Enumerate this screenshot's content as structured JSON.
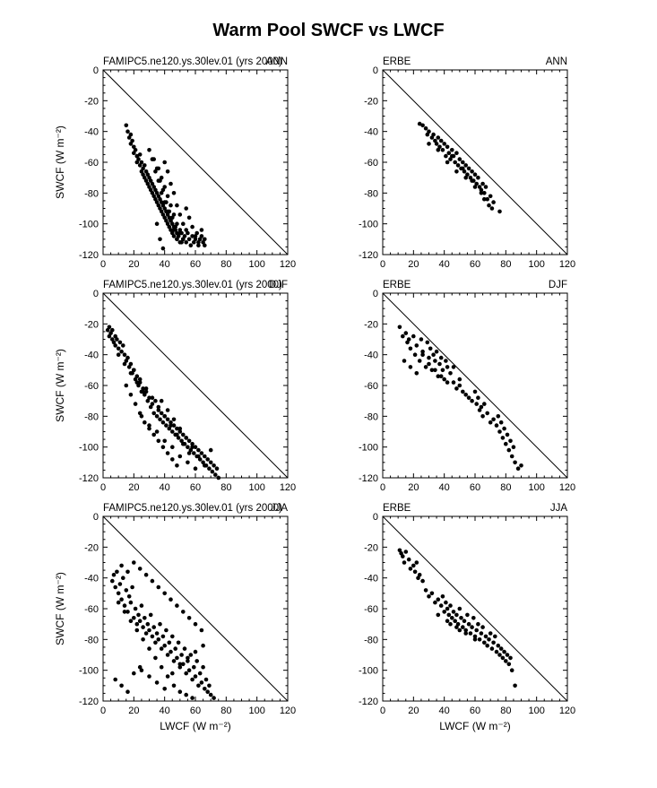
{
  "page": {
    "title": "Warm Pool SWCF vs LWCF"
  },
  "chart_data": [
    {
      "type": "scatter",
      "left_label": "FAMIPC5.ne120.ys.30lev.01  (yrs 2000)",
      "right_label": "ANN",
      "ylabel": "SWCF  (W m⁻²)",
      "xlabel": "",
      "xlim": [
        0,
        120
      ],
      "ylim": [
        -120,
        0
      ],
      "xticks": [
        "0",
        "20",
        "40",
        "60",
        "80",
        "100",
        "120"
      ],
      "yticks": [
        "0",
        "-20",
        "-40",
        "-60",
        "-80",
        "-100",
        "-120"
      ],
      "reference_line": "y = -x",
      "x": [
        15,
        16,
        17,
        18,
        18,
        19,
        20,
        20,
        21,
        22,
        22,
        23,
        24,
        24,
        25,
        25,
        26,
        26,
        27,
        27,
        28,
        28,
        29,
        29,
        30,
        30,
        31,
        31,
        32,
        32,
        33,
        33,
        34,
        34,
        35,
        35,
        36,
        36,
        37,
        37,
        38,
        38,
        39,
        39,
        40,
        40,
        41,
        41,
        42,
        42,
        43,
        43,
        44,
        44,
        45,
        45,
        46,
        46,
        47,
        48,
        48,
        49,
        50,
        50,
        51,
        52,
        53,
        54,
        55,
        56,
        57,
        58,
        59,
        60,
        61,
        62,
        63,
        64,
        65,
        66,
        36,
        38,
        40,
        42,
        44,
        46,
        48,
        50,
        52,
        54,
        33,
        35,
        37,
        39,
        41,
        43,
        45,
        47,
        49,
        51,
        30,
        32,
        34,
        36,
        38,
        40,
        42,
        44,
        46,
        48,
        40,
        42,
        44,
        46,
        48,
        50,
        52,
        54,
        56,
        58,
        60,
        62,
        64,
        66,
        35,
        37,
        39
      ],
      "y": [
        -36,
        -40,
        -44,
        -42,
        -48,
        -46,
        -50,
        -54,
        -52,
        -56,
        -60,
        -58,
        -62,
        -55,
        -66,
        -60,
        -64,
        -68,
        -62,
        -70,
        -66,
        -72,
        -68,
        -74,
        -70,
        -76,
        -72,
        -78,
        -74,
        -80,
        -76,
        -82,
        -78,
        -84,
        -80,
        -86,
        -82,
        -88,
        -84,
        -90,
        -86,
        -92,
        -88,
        -94,
        -90,
        -96,
        -92,
        -98,
        -94,
        -100,
        -96,
        -102,
        -98,
        -104,
        -100,
        -106,
        -102,
        -108,
        -104,
        -106,
        -110,
        -108,
        -104,
        -112,
        -106,
        -110,
        -108,
        -112,
        -106,
        -110,
        -114,
        -108,
        -112,
        -110,
        -106,
        -114,
        -110,
        -108,
        -112,
        -110,
        -64,
        -70,
        -76,
        -82,
        -88,
        -94,
        -100,
        -106,
        -110,
        -104,
        -58,
        -64,
        -72,
        -78,
        -86,
        -92,
        -96,
        -102,
        -108,
        -112,
        -52,
        -58,
        -66,
        -72,
        -80,
        -86,
        -92,
        -98,
        -104,
        -110,
        -60,
        -66,
        -74,
        -80,
        -88,
        -94,
        -100,
        -90,
        -96,
        -102,
        -108,
        -112,
        -104,
        -114,
        -100,
        -110,
        -116
      ]
    },
    {
      "type": "scatter",
      "left_label": "ERBE",
      "right_label": "ANN",
      "ylabel": "",
      "xlabel": "",
      "xlim": [
        0,
        120
      ],
      "ylim": [
        -120,
        0
      ],
      "xticks": [
        "0",
        "20",
        "40",
        "60",
        "80",
        "100",
        "120"
      ],
      "yticks": [
        "0",
        "-20",
        "-40",
        "-60",
        "-80",
        "-100",
        "-120"
      ],
      "reference_line": "y = -x",
      "x": [
        24,
        26,
        28,
        29,
        30,
        32,
        33,
        34,
        35,
        36,
        37,
        38,
        39,
        40,
        41,
        42,
        43,
        44,
        45,
        46,
        47,
        48,
        49,
        50,
        51,
        52,
        53,
        54,
        55,
        56,
        57,
        58,
        59,
        60,
        61,
        62,
        63,
        64,
        65,
        66,
        67,
        68,
        69,
        70,
        71,
        72,
        76,
        30,
        36,
        42,
        48,
        54,
        60,
        66,
        45,
        52,
        58,
        64
      ],
      "y": [
        -35,
        -36,
        -38,
        -42,
        -40,
        -44,
        -42,
        -46,
        -48,
        -44,
        -50,
        -46,
        -52,
        -48,
        -56,
        -50,
        -54,
        -58,
        -52,
        -56,
        -60,
        -54,
        -62,
        -58,
        -64,
        -60,
        -66,
        -62,
        -68,
        -64,
        -70,
        -66,
        -72,
        -68,
        -74,
        -70,
        -76,
        -78,
        -74,
        -80,
        -76,
        -84,
        -88,
        -82,
        -90,
        -86,
        -92,
        -48,
        -52,
        -60,
        -66,
        -70,
        -76,
        -84,
        -56,
        -64,
        -72,
        -80
      ]
    },
    {
      "type": "scatter",
      "left_label": "FAMIPC5.ne120.ys.30lev.01  (yrs 2000)",
      "right_label": "DJF",
      "ylabel": "SWCF  (W m⁻²)",
      "xlabel": "",
      "xlim": [
        0,
        120
      ],
      "ylim": [
        -120,
        0
      ],
      "xticks": [
        "0",
        "20",
        "40",
        "60",
        "80",
        "100",
        "120"
      ],
      "yticks": [
        "0",
        "-20",
        "-40",
        "-60",
        "-80",
        "-100",
        "-120"
      ],
      "reference_line": "y = -x",
      "x": [
        3,
        4,
        4,
        5,
        6,
        6,
        7,
        8,
        8,
        9,
        10,
        11,
        12,
        13,
        14,
        15,
        16,
        17,
        18,
        19,
        20,
        21,
        22,
        23,
        24,
        25,
        26,
        27,
        28,
        29,
        30,
        31,
        32,
        33,
        34,
        35,
        36,
        37,
        38,
        39,
        40,
        41,
        42,
        43,
        44,
        45,
        46,
        47,
        48,
        49,
        50,
        51,
        52,
        53,
        54,
        55,
        56,
        57,
        58,
        59,
        60,
        61,
        62,
        63,
        64,
        65,
        66,
        67,
        68,
        69,
        70,
        71,
        72,
        73,
        74,
        75,
        15,
        18,
        21,
        24,
        27,
        30,
        33,
        36,
        39,
        42,
        45,
        48,
        20,
        24,
        28,
        32,
        36,
        40,
        44,
        48,
        52,
        56,
        25,
        30,
        35,
        40,
        45,
        50,
        55,
        60,
        38,
        42,
        46,
        50,
        54,
        58,
        62,
        66,
        70,
        10,
        14,
        18,
        22,
        26
      ],
      "y": [
        -24,
        -22,
        -28,
        -26,
        -30,
        -24,
        -32,
        -28,
        -34,
        -30,
        -36,
        -32,
        -38,
        -34,
        -40,
        -44,
        -42,
        -48,
        -46,
        -52,
        -50,
        -56,
        -54,
        -60,
        -58,
        -64,
        -62,
        -66,
        -64,
        -70,
        -68,
        -74,
        -72,
        -78,
        -70,
        -80,
        -76,
        -82,
        -78,
        -84,
        -80,
        -86,
        -82,
        -88,
        -84,
        -90,
        -86,
        -92,
        -88,
        -94,
        -90,
        -96,
        -92,
        -98,
        -94,
        -100,
        -96,
        -102,
        -98,
        -104,
        -100,
        -106,
        -102,
        -108,
        -104,
        -110,
        -106,
        -112,
        -108,
        -114,
        -110,
        -116,
        -112,
        -118,
        -114,
        -120,
        -60,
        -66,
        -72,
        -78,
        -84,
        -88,
        -92,
        -96,
        -100,
        -104,
        -108,
        -112,
        -50,
        -56,
        -62,
        -68,
        -74,
        -80,
        -86,
        -92,
        -98,
        -104,
        -80,
        -86,
        -90,
        -96,
        -100,
        -106,
        -110,
        -114,
        -70,
        -76,
        -82,
        -88,
        -94,
        -100,
        -106,
        -112,
        -102,
        -40,
        -46,
        -52,
        -58,
        -64
      ]
    },
    {
      "type": "scatter",
      "left_label": "ERBE",
      "right_label": "DJF",
      "ylabel": "",
      "xlabel": "",
      "xlim": [
        0,
        120
      ],
      "ylim": [
        -120,
        0
      ],
      "xticks": [
        "0",
        "20",
        "40",
        "60",
        "80",
        "100",
        "120"
      ],
      "yticks": [
        "0",
        "-20",
        "-40",
        "-60",
        "-80",
        "-100",
        "-120"
      ],
      "reference_line": "y = -x",
      "x": [
        11,
        13,
        15,
        16,
        17,
        18,
        20,
        21,
        22,
        24,
        25,
        26,
        28,
        29,
        30,
        31,
        32,
        33,
        34,
        35,
        36,
        37,
        38,
        39,
        40,
        41,
        42,
        44,
        46,
        48,
        50,
        52,
        54,
        56,
        58,
        60,
        61,
        62,
        63,
        64,
        65,
        66,
        68,
        70,
        72,
        74,
        75,
        76,
        77,
        78,
        79,
        80,
        81,
        82,
        83,
        84,
        85,
        86,
        88,
        90,
        14,
        18,
        22,
        26,
        30,
        34,
        38,
        42,
        46,
        50
      ],
      "y": [
        -22,
        -28,
        -26,
        -32,
        -30,
        -36,
        -28,
        -40,
        -34,
        -44,
        -30,
        -38,
        -48,
        -32,
        -42,
        -36,
        -50,
        -40,
        -44,
        -38,
        -54,
        -46,
        -42,
        -50,
        -56,
        -44,
        -48,
        -52,
        -58,
        -62,
        -60,
        -64,
        -66,
        -68,
        -70,
        -64,
        -72,
        -68,
        -76,
        -74,
        -80,
        -72,
        -78,
        -84,
        -82,
        -86,
        -80,
        -90,
        -84,
        -94,
        -88,
        -98,
        -92,
        -102,
        -96,
        -106,
        -100,
        -110,
        -114,
        -112,
        -44,
        -48,
        -52,
        -40,
        -46,
        -50,
        -54,
        -58,
        -48,
        -56
      ]
    },
    {
      "type": "scatter",
      "left_label": "FAMIPC5.ne120.ys.30lev.01  (yrs 2000)",
      "right_label": "JJA",
      "ylabel": "SWCF  (W m⁻²)",
      "xlabel": "LWCF  (W m⁻²)",
      "xlim": [
        0,
        120
      ],
      "ylim": [
        -120,
        0
      ],
      "xticks": [
        "0",
        "20",
        "40",
        "60",
        "80",
        "100",
        "120"
      ],
      "yticks": [
        "0",
        "-20",
        "-40",
        "-60",
        "-80",
        "-100",
        "-120"
      ],
      "reference_line": "y = -x",
      "x": [
        6,
        7,
        8,
        9,
        10,
        11,
        12,
        13,
        14,
        15,
        16,
        17,
        18,
        19,
        20,
        21,
        22,
        23,
        24,
        25,
        26,
        27,
        28,
        29,
        30,
        31,
        32,
        33,
        34,
        35,
        36,
        37,
        38,
        39,
        40,
        41,
        42,
        43,
        44,
        45,
        46,
        47,
        48,
        49,
        50,
        51,
        52,
        53,
        54,
        55,
        56,
        57,
        58,
        59,
        60,
        61,
        62,
        63,
        64,
        65,
        66,
        67,
        68,
        69,
        70,
        72,
        10,
        14,
        18,
        22,
        26,
        30,
        34,
        38,
        42,
        46,
        50,
        54,
        58,
        12,
        16,
        20,
        24,
        28,
        32,
        36,
        40,
        44,
        48,
        52,
        56,
        60,
        64,
        25,
        30,
        35,
        40,
        45,
        50,
        55,
        60,
        65,
        8,
        12,
        16,
        20,
        24
      ],
      "y": [
        -42,
        -38,
        -46,
        -36,
        -50,
        -44,
        -54,
        -40,
        -58,
        -48,
        -62,
        -52,
        -56,
        -46,
        -66,
        -60,
        -70,
        -64,
        -68,
        -58,
        -72,
        -66,
        -76,
        -70,
        -74,
        -64,
        -78,
        -72,
        -82,
        -76,
        -80,
        -70,
        -86,
        -78,
        -84,
        -74,
        -90,
        -82,
        -88,
        -78,
        -94,
        -86,
        -92,
        -82,
        -98,
        -90,
        -96,
        -86,
        -102,
        -94,
        -100,
        -90,
        -106,
        -98,
        -104,
        -94,
        -110,
        -102,
        -108,
        -98,
        -112,
        -106,
        -114,
        -110,
        -116,
        -118,
        -56,
        -62,
        -68,
        -74,
        -80,
        -86,
        -92,
        -98,
        -104,
        -110,
        -114,
        -116,
        -118,
        -32,
        -36,
        -30,
        -34,
        -38,
        -42,
        -46,
        -50,
        -54,
        -58,
        -62,
        -66,
        -70,
        -74,
        -100,
        -104,
        -108,
        -112,
        -102,
        -96,
        -92,
        -88,
        -84,
        -106,
        -110,
        -114,
        -102,
        -98
      ]
    },
    {
      "type": "scatter",
      "left_label": "ERBE",
      "right_label": "JJA",
      "ylabel": "",
      "xlabel": "LWCF  (W m⁻²)",
      "xlim": [
        0,
        120
      ],
      "ylim": [
        -120,
        0
      ],
      "xticks": [
        "0",
        "20",
        "40",
        "60",
        "80",
        "100",
        "120"
      ],
      "yticks": [
        "0",
        "-20",
        "-40",
        "-60",
        "-80",
        "-100",
        "-120"
      ],
      "reference_line": "y = -x",
      "x": [
        11,
        12,
        13,
        14,
        15,
        17,
        18,
        20,
        21,
        22,
        23,
        24,
        26,
        28,
        30,
        32,
        34,
        36,
        38,
        39,
        40,
        41,
        42,
        43,
        44,
        45,
        46,
        47,
        48,
        49,
        50,
        51,
        52,
        53,
        54,
        55,
        56,
        57,
        58,
        59,
        60,
        61,
        62,
        63,
        64,
        65,
        66,
        67,
        68,
        69,
        70,
        71,
        72,
        73,
        74,
        75,
        76,
        77,
        78,
        79,
        80,
        81,
        82,
        83,
        84,
        86,
        36,
        42,
        48,
        54,
        60,
        44,
        50
      ],
      "y": [
        -22,
        -24,
        -26,
        -30,
        -23,
        -28,
        -34,
        -32,
        -36,
        -30,
        -40,
        -38,
        -42,
        -48,
        -52,
        -50,
        -56,
        -54,
        -58,
        -52,
        -62,
        -56,
        -60,
        -64,
        -58,
        -66,
        -62,
        -68,
        -64,
        -70,
        -60,
        -66,
        -72,
        -68,
        -74,
        -64,
        -70,
        -76,
        -72,
        -66,
        -78,
        -74,
        -70,
        -80,
        -76,
        -72,
        -82,
        -78,
        -84,
        -80,
        -76,
        -86,
        -82,
        -78,
        -88,
        -84,
        -90,
        -86,
        -92,
        -88,
        -94,
        -90,
        -96,
        -92,
        -100,
        -110,
        -64,
        -68,
        -72,
        -76,
        -80,
        -70,
        -74
      ]
    }
  ]
}
